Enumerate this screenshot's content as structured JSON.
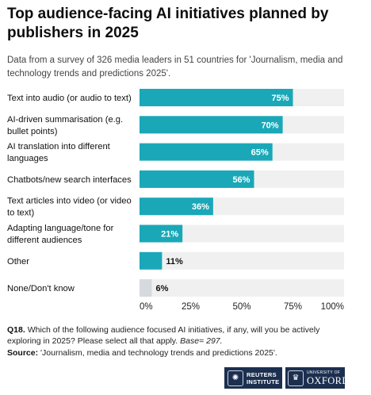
{
  "header": {
    "title": "Top audience-facing AI initiatives planned by publishers in 2025",
    "subtitle": "Data from a survey of 326 media leaders in 51 countries for 'Journalism, media and technology trends and predictions 2025'."
  },
  "chart_data": {
    "type": "bar",
    "orientation": "horizontal",
    "categories": [
      "Text into audio (or audio to text)",
      "AI-driven summarisation (e.g. bullet points)",
      "AI translation into different languages",
      "Chatbots/new search interfaces",
      "Text articles into video (or video to text)",
      "Adapting language/tone for different audiences",
      "Other",
      "None/Don't know"
    ],
    "category_lines": [
      [
        "Text into audio (or audio to text)"
      ],
      [
        "AI-driven summarisation (e.g.",
        "bullet points)"
      ],
      [
        "AI translation into different",
        "languages"
      ],
      [
        "Chatbots/new search interfaces"
      ],
      [
        "Text articles into video (or video",
        "to text)"
      ],
      [
        "Adapting language/tone for",
        "different audiences"
      ],
      [
        "Other"
      ],
      [
        "None/Don't know"
      ]
    ],
    "values": [
      75,
      70,
      65,
      56,
      36,
      21,
      11,
      6
    ],
    "value_labels": [
      "75%",
      "70%",
      "65%",
      "56%",
      "36%",
      "21%",
      "11%",
      "6%"
    ],
    "bar_colors": [
      "#1aa8b8",
      "#1aa8b8",
      "#1aa8b8",
      "#1aa8b8",
      "#1aa8b8",
      "#1aa8b8",
      "#1aa8b8",
      "#d6d9de"
    ],
    "track_color": "#f0f0f0",
    "xlim": [
      0,
      100
    ],
    "x_ticks": [
      0,
      25,
      50,
      75,
      100
    ],
    "x_tick_labels": [
      "0%",
      "25%",
      "50%",
      "75%",
      "100%"
    ],
    "grid": false
  },
  "footer": {
    "question_label": "Q18.",
    "question_text": "Which of the following audience focused AI initiatives, if any, will you be actively exploring in 2025? Please select all that apply.",
    "base_text": "Base= 297.",
    "source_label": "Source:",
    "source_text": "'Journalism, media and technology trends and predictions 2025'."
  },
  "logos": {
    "reuters_line1": "REUTERS",
    "reuters_line2": "INSTITUTE",
    "oxford_small": "UNIVERSITY OF",
    "oxford_big": "OXFORD"
  }
}
